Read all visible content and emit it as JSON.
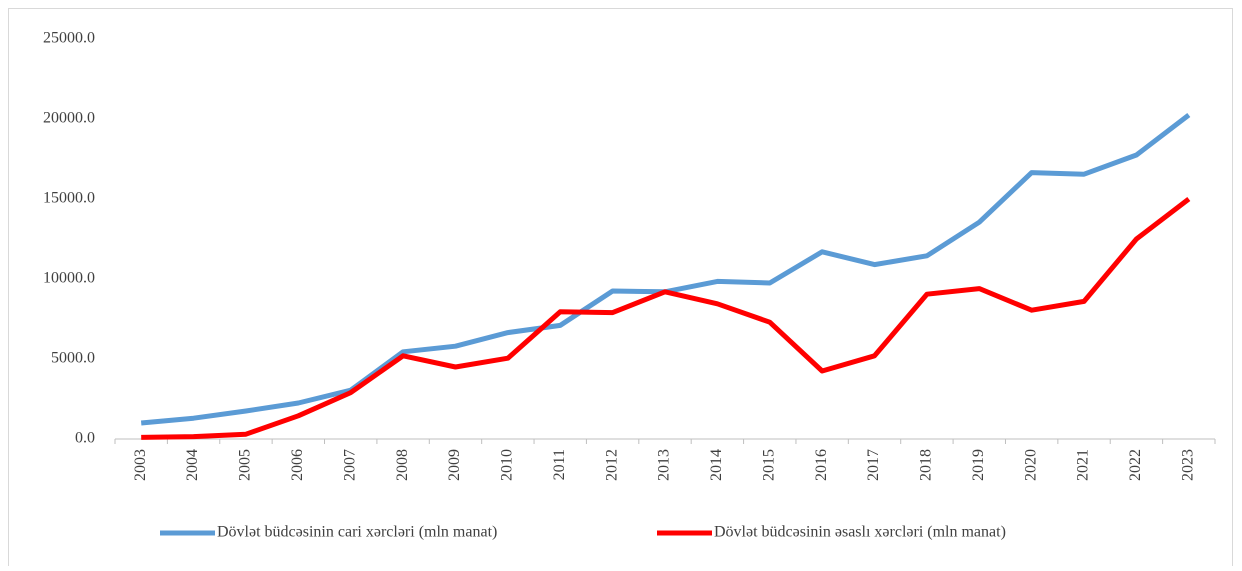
{
  "chart_data": {
    "type": "line",
    "categories": [
      "2003",
      "2004",
      "2005",
      "2006",
      "2007",
      "2008",
      "2009",
      "2010",
      "2011",
      "2012",
      "2013",
      "2014",
      "2015",
      "2016",
      "2017",
      "2018",
      "2019",
      "2020",
      "2021",
      "2022",
      "2023"
    ],
    "series": [
      {
        "name": "Dövlət büdcəsinin cari xərcləri (mln manat)",
        "color": "#5b9bd5",
        "values": [
          1000,
          1300,
          1750,
          2250,
          3050,
          5450,
          5800,
          6650,
          7100,
          9250,
          9200,
          9850,
          9750,
          11700,
          10900,
          11450,
          13550,
          16650,
          16550,
          17750,
          20250
        ]
      },
      {
        "name": "Dövlət büdcəsinin əsaslı xərcləri (mln manat)",
        "color": "#ff0000",
        "values": [
          100,
          150,
          300,
          1450,
          2900,
          5200,
          4500,
          5050,
          7950,
          7900,
          9200,
          8450,
          7300,
          4250,
          5200,
          9050,
          9400,
          8050,
          8600,
          12500,
          15000
        ]
      }
    ],
    "ylim": [
      0,
      25000
    ],
    "yticks": [
      {
        "value": 0,
        "label": "0.0"
      },
      {
        "value": 5000,
        "label": "5000.0"
      },
      {
        "value": 10000,
        "label": "10000.0"
      },
      {
        "value": 15000,
        "label": "15000.0"
      },
      {
        "value": 20000,
        "label": "20000.0"
      },
      {
        "value": 25000,
        "label": "25000.0"
      }
    ],
    "grid": false
  }
}
